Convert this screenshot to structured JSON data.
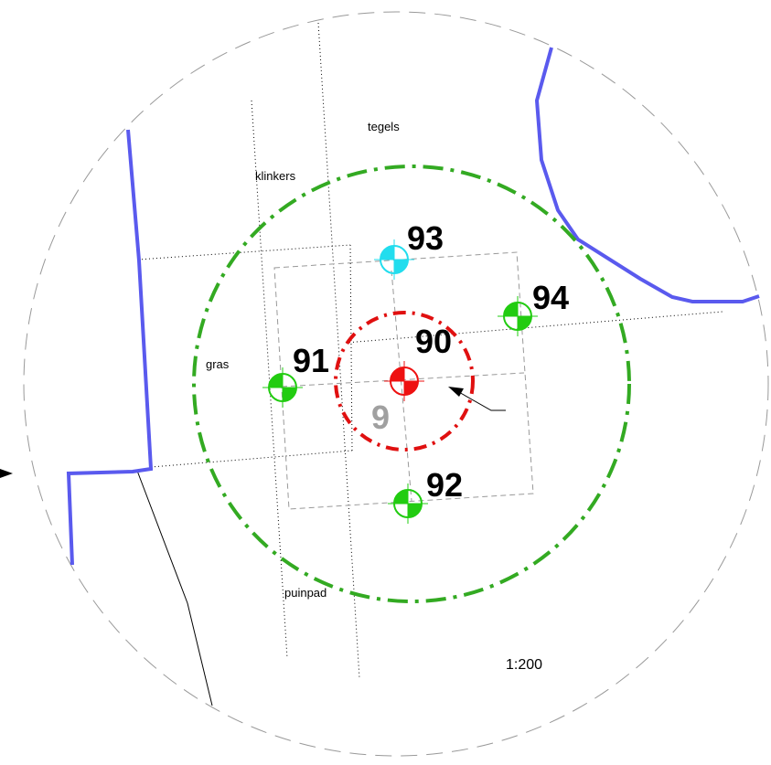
{
  "map": {
    "scale": "1:200",
    "surface_labels": {
      "tegels": "tegels",
      "klinkers": "klinkers",
      "gras": "gras",
      "puinpad": "puinpad"
    },
    "points": {
      "p90": "90",
      "p91": "91",
      "p92": "92",
      "p93": "93",
      "p94": "94",
      "p9": "9"
    },
    "colors": {
      "outer_circle": "#999999",
      "boundary": "#5a5aee",
      "green_circle": "#33aa22",
      "red_circle": "#e01010",
      "marker_green": "#22cc11",
      "marker_cyan": "#22ddee",
      "marker_red": "#ee1111"
    }
  }
}
